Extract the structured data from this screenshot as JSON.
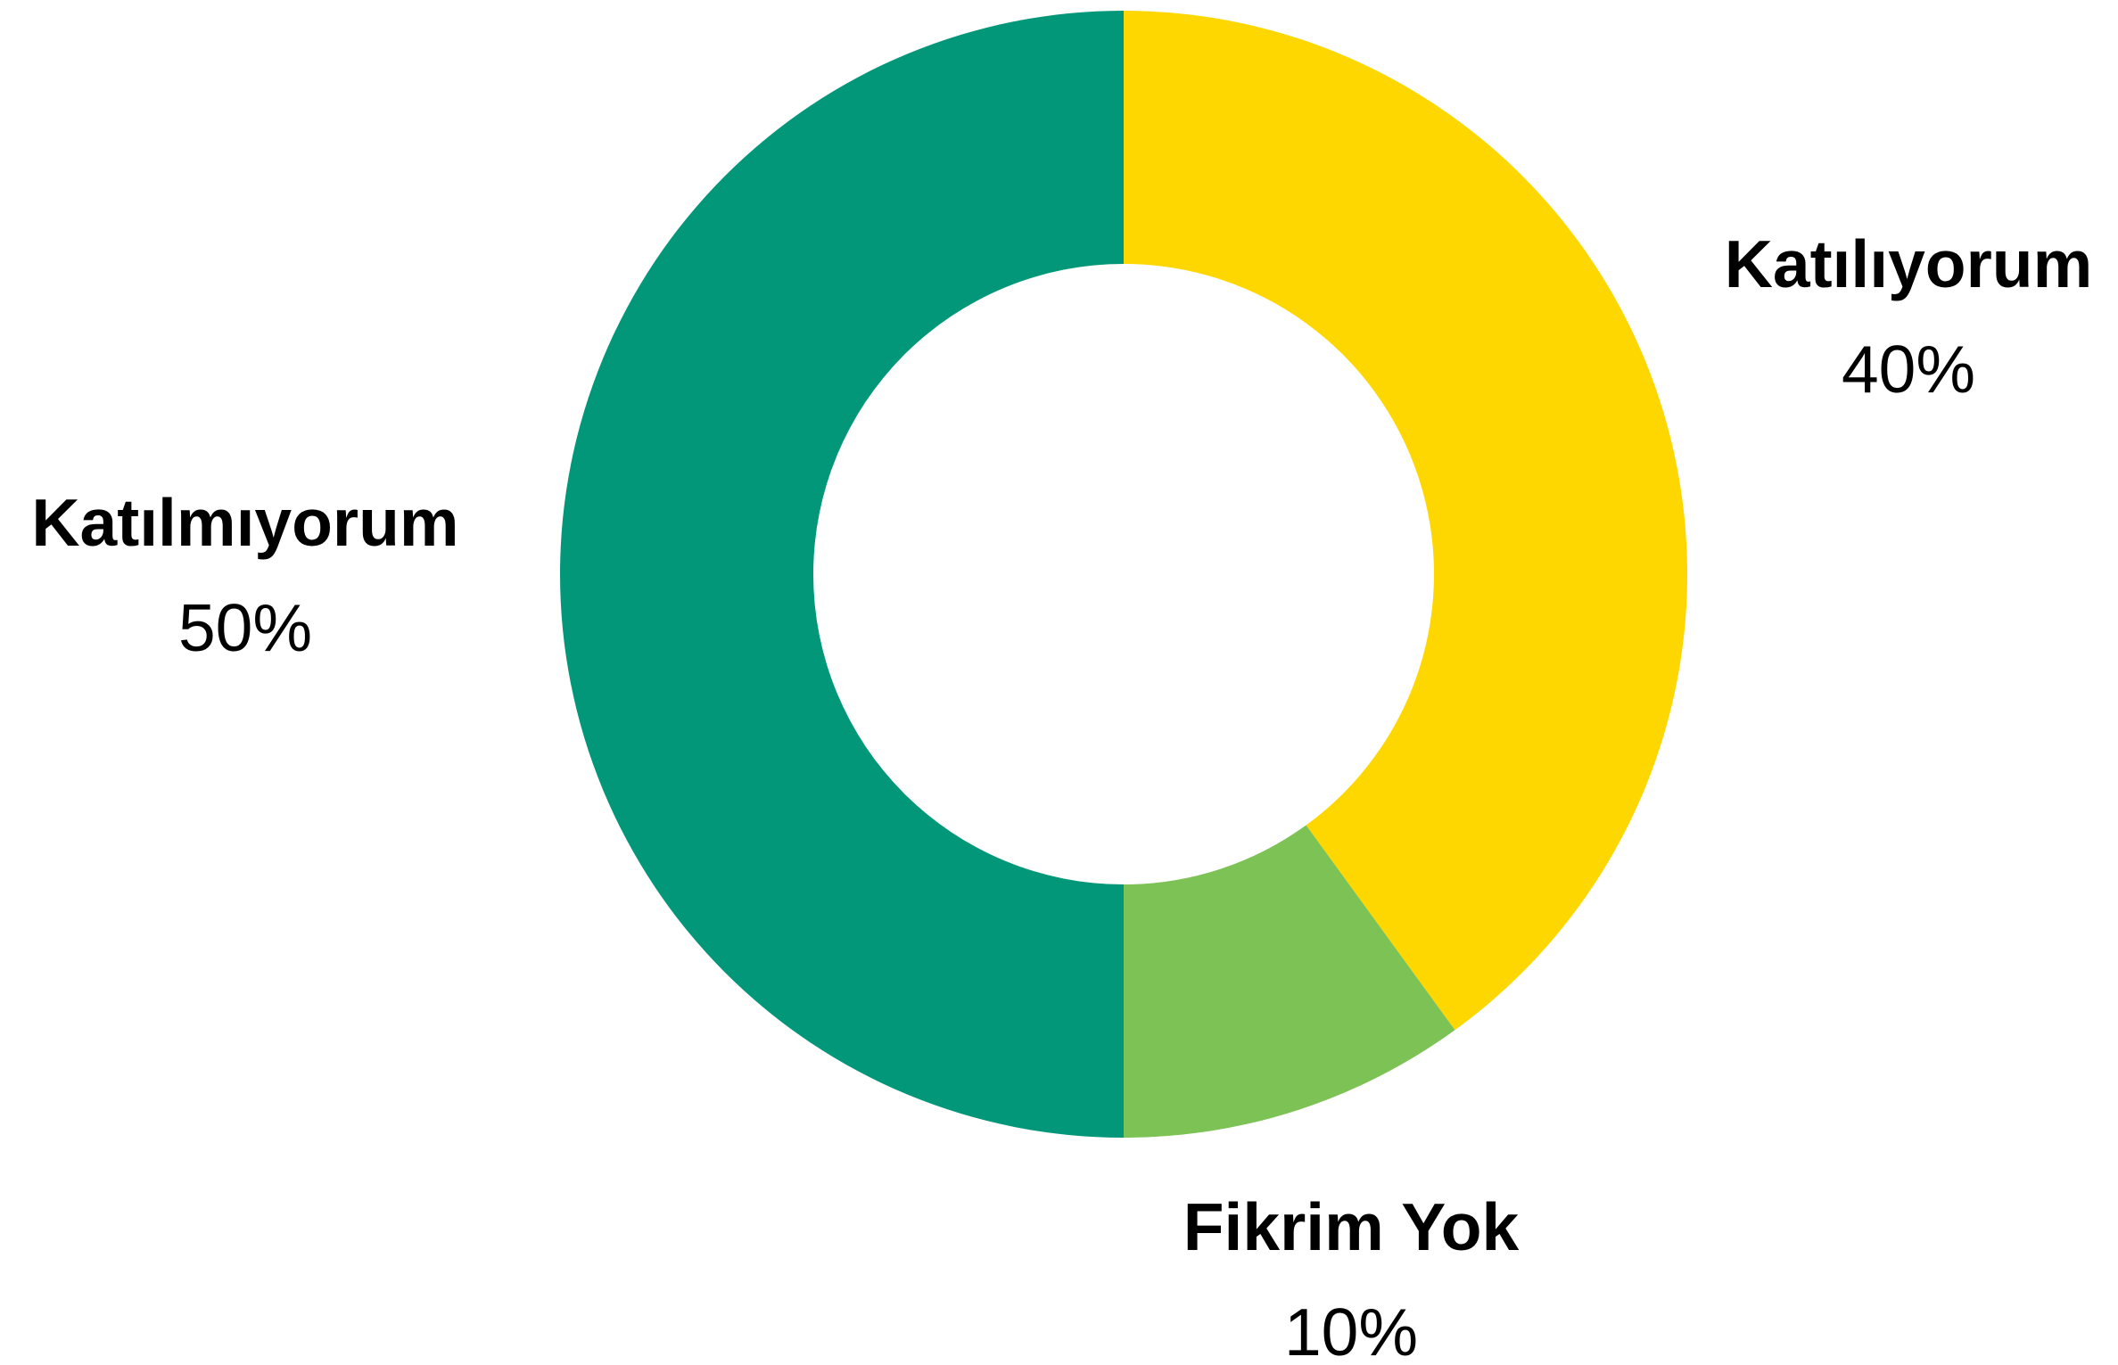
{
  "chart_data": {
    "type": "pie",
    "subtype": "donut",
    "title": "",
    "slices": [
      {
        "label": "Katılıyorum",
        "value": 40,
        "display": "40%",
        "color": "#FFD700"
      },
      {
        "label": "Fikrim Yok",
        "value": 10,
        "display": "10%",
        "color": "#7CC254"
      },
      {
        "label": "Katılmıyorum",
        "value": 50,
        "display": "50%",
        "color": "#029779"
      }
    ],
    "start_angle": "12 o'clock",
    "direction": "clockwise",
    "legend": "none",
    "labels": "outside"
  }
}
